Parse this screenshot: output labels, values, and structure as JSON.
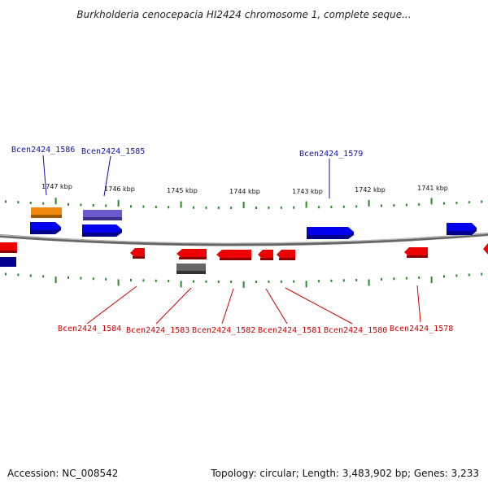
{
  "title": "Burkholderia cenocepacia HI2424 chromosome 1, complete seque...",
  "accession_text": "Accession: NC_008542",
  "summary_text": "Topology: circular; Length: 3,483,902 bp; Genes: 3,233",
  "colors": {
    "forward_gene": "#0000ee",
    "reverse_gene": "#ee0000",
    "forward_label": "#1010aa",
    "reverse_label": "#cc0000",
    "backbone": "#888888",
    "tick": "#2a8a2a"
  },
  "scale_labels": [
    "1747 kbp",
    "1746 kbp",
    "1745 kbp",
    "1744 kbp",
    "1743 kbp",
    "1742 kbp",
    "1741 kbp"
  ],
  "forward_gene_labels": [
    "Bcen2424_1586",
    "Bcen2424_1585",
    "Bcen2424_1579"
  ],
  "reverse_gene_labels": [
    "Bcen2424_1584",
    "Bcen2424_1583",
    "Bcen2424_1582",
    "Bcen2424_1581",
    "Bcen2424_1580",
    "Bcen2424_1578"
  ]
}
